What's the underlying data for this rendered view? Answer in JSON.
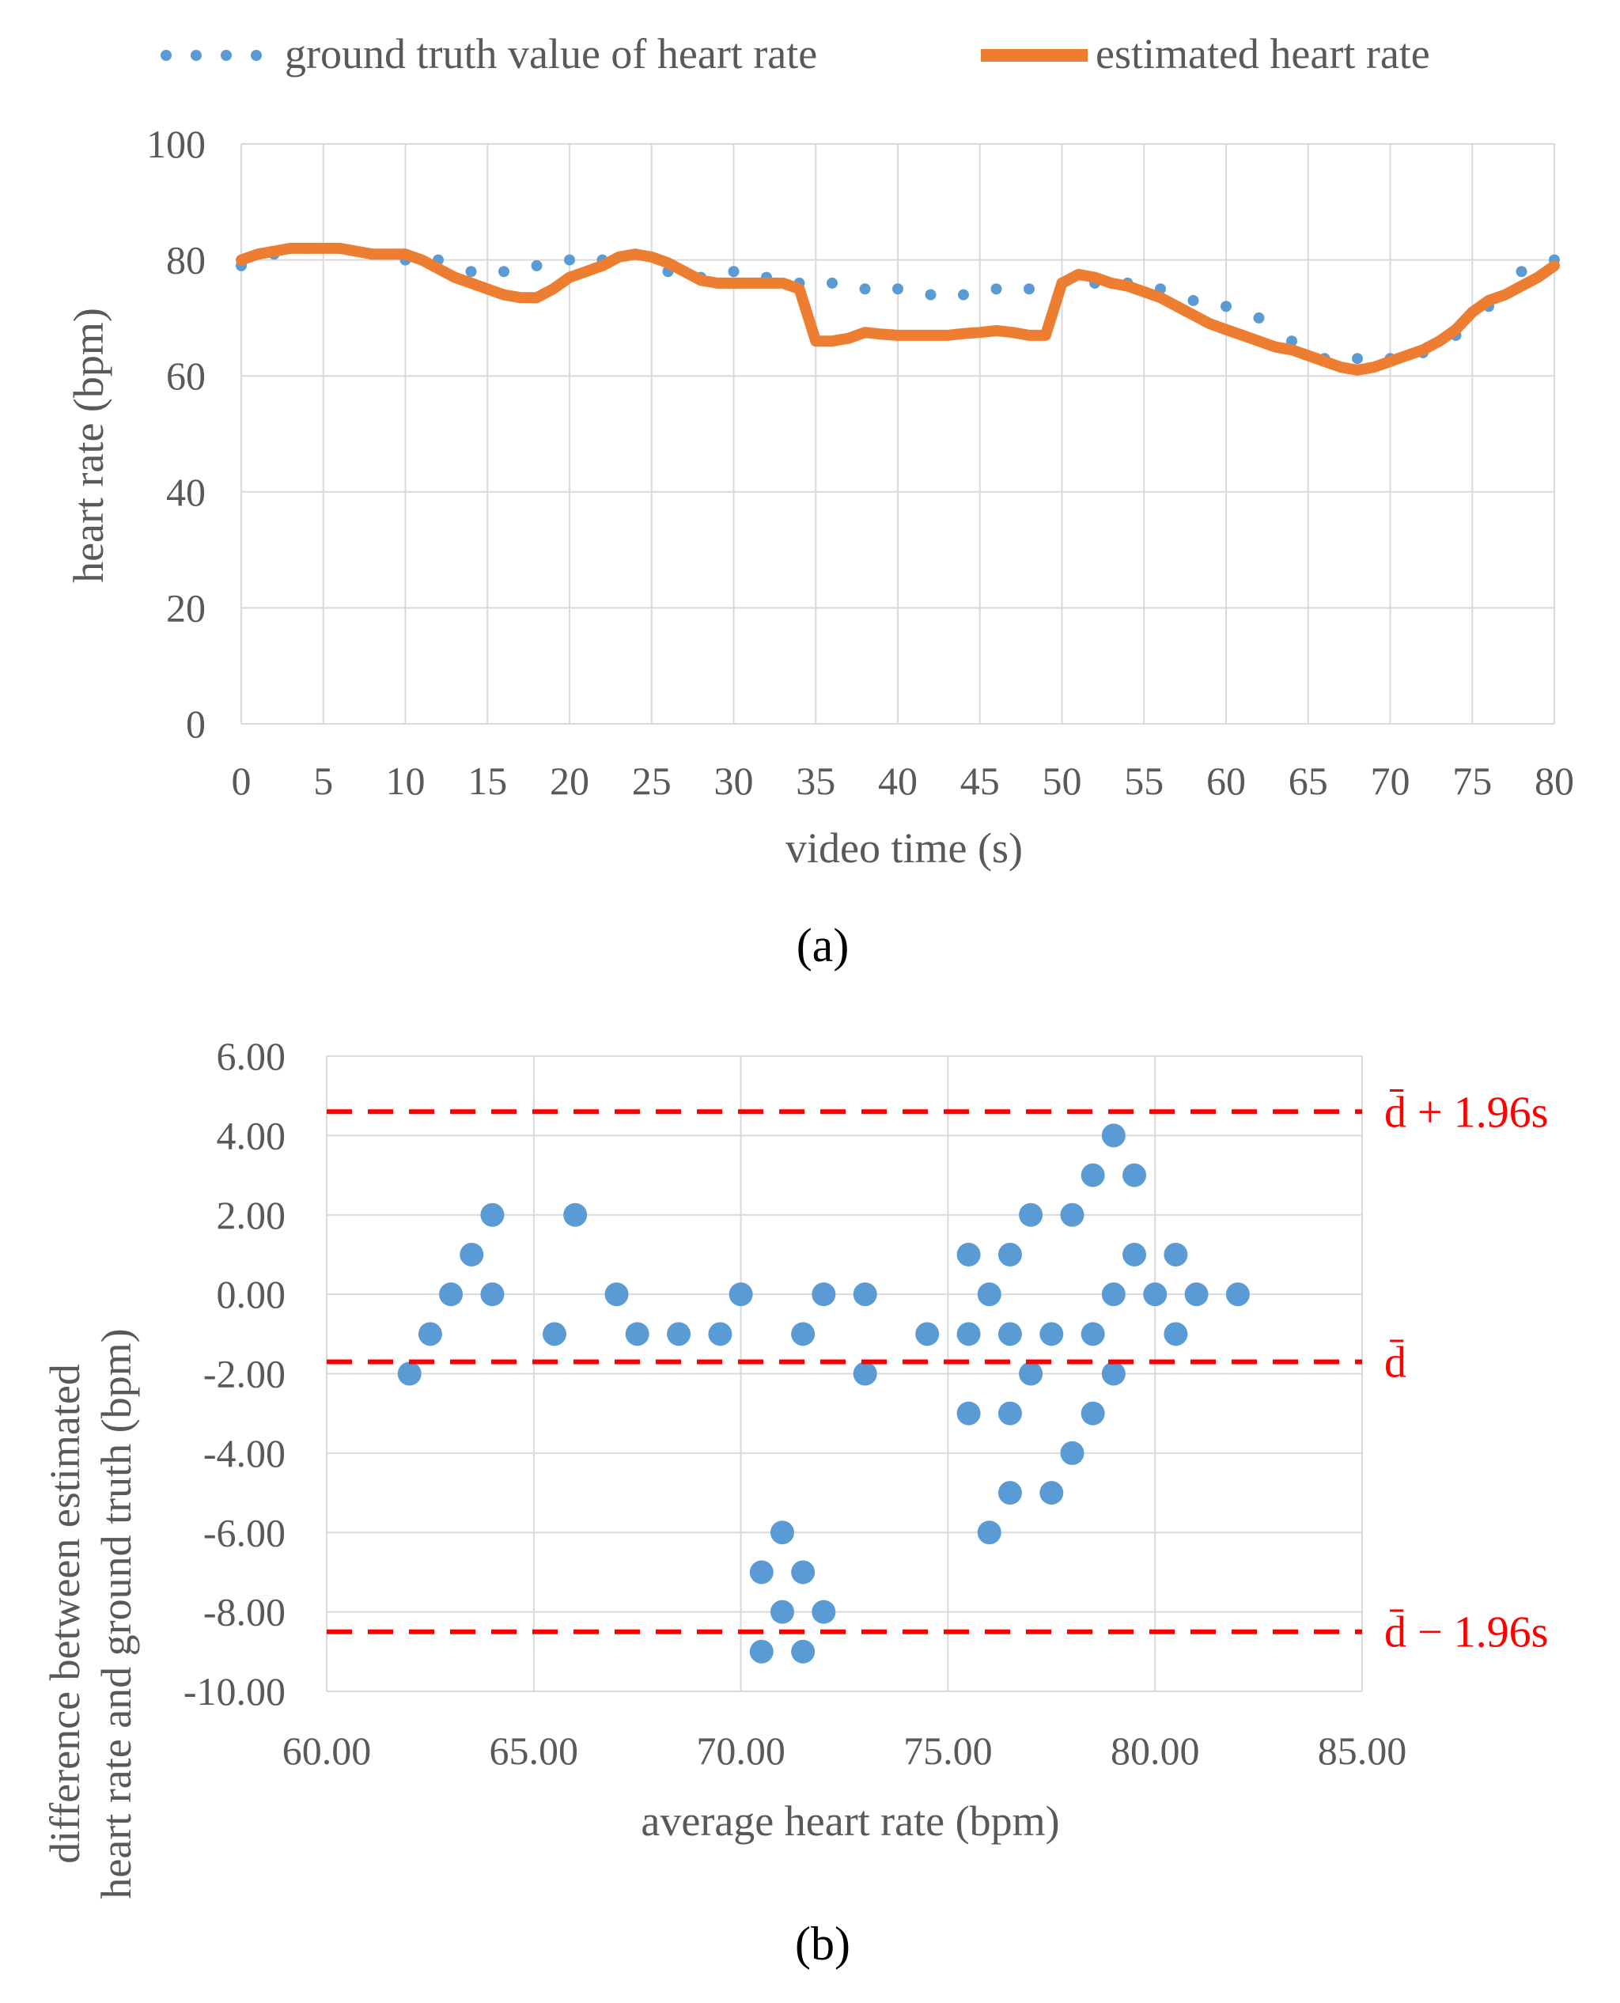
{
  "colors": {
    "ground_truth": "#5b9bd5",
    "estimated": "#ed7d31",
    "points": "#5b9bd5",
    "ref_lines": "#ff0000",
    "grid": "#d9d9d9",
    "text": "#595959"
  },
  "panel_a_label": "(a)",
  "panel_b_label": "(b)",
  "chart_data": [
    {
      "type": "line",
      "title": "",
      "xlabel": "video time (s)",
      "ylabel": "heart rate (bpm)",
      "xlim": [
        0,
        80
      ],
      "ylim": [
        0,
        100
      ],
      "xticks": [
        0,
        5,
        10,
        15,
        20,
        25,
        30,
        35,
        40,
        45,
        50,
        55,
        60,
        65,
        70,
        75,
        80
      ],
      "yticks": [
        0,
        20,
        40,
        60,
        80,
        100
      ],
      "x_tick_labels": [
        "0",
        "5",
        "10",
        "15",
        "20",
        "25",
        "30",
        "35",
        "40",
        "45",
        "50",
        "55",
        "60",
        "65",
        "70",
        "75",
        "80"
      ],
      "y_tick_labels": [
        "0",
        "20",
        "40",
        "60",
        "80",
        "100"
      ],
      "grid": true,
      "legend": "top",
      "series": [
        {
          "name": "ground truth value of heart rate",
          "style": "dotted-markers",
          "x": [
            0,
            2,
            4,
            6,
            8,
            10,
            12,
            14,
            16,
            18,
            20,
            22,
            24,
            26,
            28,
            30,
            32,
            34,
            36,
            38,
            40,
            42,
            44,
            46,
            48,
            50,
            52,
            54,
            56,
            58,
            60,
            62,
            64,
            66,
            68,
            70,
            72,
            74,
            76,
            78,
            80
          ],
          "values": [
            79,
            81,
            82,
            82,
            81,
            80,
            80,
            78,
            78,
            79,
            80,
            80,
            81,
            78,
            77,
            78,
            77,
            76,
            76,
            75,
            75,
            74,
            74,
            75,
            75,
            76,
            76,
            76,
            75,
            73,
            72,
            70,
            66,
            63,
            63,
            63,
            64,
            67,
            72,
            78,
            80
          ]
        },
        {
          "name": "estimated heart rate",
          "style": "thick-line",
          "x": [
            0,
            1,
            2,
            3,
            4,
            5,
            6,
            7,
            8,
            9,
            10,
            11,
            12,
            13,
            14,
            15,
            16,
            17,
            18,
            19,
            20,
            21,
            22,
            23,
            24,
            25,
            26,
            27,
            28,
            29,
            30,
            31,
            32,
            33,
            34,
            35,
            36,
            37,
            38,
            39,
            40,
            41,
            42,
            43,
            44,
            45,
            46,
            47,
            48,
            49,
            50,
            51,
            52,
            53,
            54,
            55,
            56,
            57,
            58,
            59,
            60,
            61,
            62,
            63,
            64,
            65,
            66,
            67,
            68,
            69,
            70,
            71,
            72,
            73,
            74,
            75,
            76,
            77,
            78,
            79,
            80
          ],
          "values": [
            80,
            81,
            81.5,
            82,
            82,
            82,
            82,
            81.5,
            81,
            81,
            81,
            80,
            78.5,
            77,
            76,
            75,
            74,
            73.5,
            73.5,
            75,
            77,
            78,
            79,
            80.5,
            81,
            80.5,
            79.5,
            78,
            76.5,
            76,
            76,
            76,
            76,
            76,
            75,
            66,
            66,
            66.5,
            67.5,
            67.2,
            67,
            67,
            67,
            67,
            67.3,
            67.5,
            67.8,
            67.5,
            67,
            67,
            76,
            77.5,
            77,
            76,
            75.5,
            74.5,
            73.5,
            72,
            70.5,
            69,
            68,
            67,
            66,
            65,
            64.5,
            63.5,
            62.5,
            61.5,
            61,
            61.5,
            62.5,
            63.5,
            64.5,
            66,
            68,
            71,
            73,
            74,
            75.5,
            77,
            79
          ]
        }
      ]
    },
    {
      "type": "scatter",
      "title": "",
      "xlabel": "average heart rate (bpm)",
      "ylabel": "difference between estimated heart rate and ground truth (bpm)",
      "ylabel_lines": [
        "difference between estimated",
        "heart rate and ground truth (bpm)"
      ],
      "xlim": [
        60,
        85
      ],
      "ylim": [
        -10,
        6
      ],
      "xticks": [
        60,
        65,
        70,
        75,
        80,
        85
      ],
      "yticks": [
        6,
        4,
        2,
        0,
        -2,
        -4,
        -6,
        -8,
        -10
      ],
      "x_tick_labels": [
        "60.00",
        "65.00",
        "70.00",
        "75.00",
        "80.00",
        "85.00"
      ],
      "y_tick_labels": [
        "6.00",
        "4.00",
        "2.00",
        "0.00",
        "-2.00",
        "-4.00",
        "-6.00",
        "-8.00",
        "-10.00"
      ],
      "grid": true,
      "points": [
        [
          62,
          -2
        ],
        [
          62.5,
          -1
        ],
        [
          63,
          0
        ],
        [
          63.5,
          1
        ],
        [
          64,
          2
        ],
        [
          64,
          0
        ],
        [
          65.5,
          -1
        ],
        [
          66,
          2
        ],
        [
          67,
          0
        ],
        [
          67.5,
          -1
        ],
        [
          68.5,
          -1
        ],
        [
          69.5,
          -1
        ],
        [
          70,
          0
        ],
        [
          70.5,
          -7
        ],
        [
          70.5,
          -9
        ],
        [
          71,
          -6
        ],
        [
          71,
          -8
        ],
        [
          71.5,
          -7
        ],
        [
          71.5,
          -9
        ],
        [
          71.5,
          -1
        ],
        [
          72,
          -8
        ],
        [
          72,
          0
        ],
        [
          73,
          0
        ],
        [
          73,
          -2
        ],
        [
          74.5,
          -1
        ],
        [
          75.5,
          1
        ],
        [
          75.5,
          -1
        ],
        [
          75.5,
          -3
        ],
        [
          76,
          0
        ],
        [
          76,
          -6
        ],
        [
          76.5,
          1
        ],
        [
          76.5,
          -1
        ],
        [
          76.5,
          -3
        ],
        [
          76.5,
          -5
        ],
        [
          77,
          2
        ],
        [
          77,
          -2
        ],
        [
          77.5,
          -1
        ],
        [
          77.5,
          -5
        ],
        [
          78,
          2
        ],
        [
          78,
          -4
        ],
        [
          78.5,
          3
        ],
        [
          78.5,
          -1
        ],
        [
          78.5,
          -3
        ],
        [
          79,
          4
        ],
        [
          79,
          0
        ],
        [
          79,
          -2
        ],
        [
          79.5,
          3
        ],
        [
          79.5,
          1
        ],
        [
          80,
          0
        ],
        [
          80.5,
          1
        ],
        [
          80.5,
          -1
        ],
        [
          81,
          0
        ],
        [
          82,
          0
        ]
      ],
      "reference_lines": [
        {
          "name": "upper limit",
          "label": "d̄ + 1.96s",
          "value": 4.6
        },
        {
          "name": "mean",
          "label": "d̄",
          "value": -1.7
        },
        {
          "name": "lower limit",
          "label": "d̄ − 1.96s",
          "value": -8.5
        }
      ]
    }
  ]
}
